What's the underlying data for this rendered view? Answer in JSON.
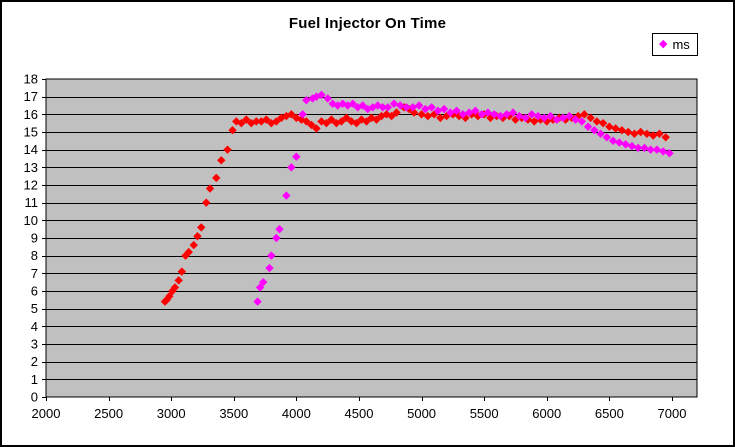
{
  "chart_data": {
    "type": "scatter",
    "title": "Fuel Injector On Time",
    "xlabel": "",
    "ylabel": "",
    "xlim": [
      2000,
      7200
    ],
    "ylim": [
      0,
      18
    ],
    "x_ticks": [
      2000,
      2500,
      3000,
      3500,
      4000,
      4500,
      5000,
      5500,
      6000,
      6500,
      7000
    ],
    "y_ticks": [
      0,
      1,
      2,
      3,
      4,
      5,
      6,
      7,
      8,
      9,
      10,
      11,
      12,
      13,
      14,
      15,
      16,
      17,
      18
    ],
    "grid": "horizontal",
    "colors": {
      "plot_background": "#C0C0C0",
      "gridline": "#000000",
      "axis": "#000000",
      "outer_border": "#000000",
      "text": "#000000"
    },
    "legend": {
      "position": "top-right",
      "entries": [
        {
          "label": "ms",
          "color": "#FF00FF",
          "marker": "diamond"
        }
      ]
    },
    "series": [
      {
        "name": "",
        "color": "#FF0000",
        "marker": "diamond",
        "points": [
          [
            2950,
            5.4
          ],
          [
            2965,
            5.5
          ],
          [
            2985,
            5.7
          ],
          [
            3010,
            6.0
          ],
          [
            3030,
            6.2
          ],
          [
            3060,
            6.6
          ],
          [
            3085,
            7.1
          ],
          [
            3115,
            8.0
          ],
          [
            3140,
            8.2
          ],
          [
            3180,
            8.6
          ],
          [
            3210,
            9.1
          ],
          [
            3240,
            9.6
          ],
          [
            3280,
            11.0
          ],
          [
            3310,
            11.8
          ],
          [
            3360,
            12.4
          ],
          [
            3400,
            13.4
          ],
          [
            3450,
            14.0
          ],
          [
            3490,
            15.1
          ],
          [
            3520,
            15.6
          ],
          [
            3560,
            15.5
          ],
          [
            3600,
            15.7
          ],
          [
            3640,
            15.5
          ],
          [
            3680,
            15.6
          ],
          [
            3720,
            15.6
          ],
          [
            3760,
            15.7
          ],
          [
            3800,
            15.5
          ],
          [
            3840,
            15.6
          ],
          [
            3880,
            15.8
          ],
          [
            3920,
            15.9
          ],
          [
            3960,
            16.0
          ],
          [
            4000,
            15.8
          ],
          [
            4040,
            15.7
          ],
          [
            4080,
            15.6
          ],
          [
            4120,
            15.4
          ],
          [
            4160,
            15.2
          ],
          [
            4200,
            15.6
          ],
          [
            4240,
            15.5
          ],
          [
            4280,
            15.7
          ],
          [
            4320,
            15.5
          ],
          [
            4360,
            15.6
          ],
          [
            4400,
            15.8
          ],
          [
            4440,
            15.6
          ],
          [
            4480,
            15.5
          ],
          [
            4520,
            15.7
          ],
          [
            4560,
            15.6
          ],
          [
            4600,
            15.8
          ],
          [
            4640,
            15.7
          ],
          [
            4680,
            15.9
          ],
          [
            4720,
            16.0
          ],
          [
            4760,
            15.9
          ],
          [
            4800,
            16.1
          ],
          [
            4860,
            16.4
          ],
          [
            4900,
            16.3
          ],
          [
            4940,
            16.1
          ],
          [
            5000,
            16.0
          ],
          [
            5050,
            15.9
          ],
          [
            5100,
            16.0
          ],
          [
            5150,
            15.8
          ],
          [
            5200,
            15.9
          ],
          [
            5250,
            16.0
          ],
          [
            5300,
            15.9
          ],
          [
            5350,
            15.8
          ],
          [
            5400,
            16.0
          ],
          [
            5450,
            15.9
          ],
          [
            5500,
            16.0
          ],
          [
            5550,
            15.8
          ],
          [
            5600,
            15.9
          ],
          [
            5650,
            15.8
          ],
          [
            5700,
            15.9
          ],
          [
            5750,
            15.7
          ],
          [
            5800,
            15.8
          ],
          [
            5850,
            15.7
          ],
          [
            5900,
            15.6
          ],
          [
            5950,
            15.7
          ],
          [
            6000,
            15.6
          ],
          [
            6050,
            15.7
          ],
          [
            6100,
            15.8
          ],
          [
            6150,
            15.7
          ],
          [
            6200,
            15.8
          ],
          [
            6250,
            15.9
          ],
          [
            6300,
            16.0
          ],
          [
            6350,
            15.8
          ],
          [
            6400,
            15.6
          ],
          [
            6450,
            15.5
          ],
          [
            6500,
            15.3
          ],
          [
            6550,
            15.2
          ],
          [
            6600,
            15.1
          ],
          [
            6650,
            15.0
          ],
          [
            6700,
            14.9
          ],
          [
            6750,
            15.0
          ],
          [
            6800,
            14.9
          ],
          [
            6850,
            14.8
          ],
          [
            6900,
            14.9
          ],
          [
            6950,
            14.7
          ]
        ]
      },
      {
        "name": "ms",
        "color": "#FF00FF",
        "marker": "diamond",
        "points": [
          [
            3690,
            5.4
          ],
          [
            3710,
            6.2
          ],
          [
            3735,
            6.5
          ],
          [
            3785,
            7.3
          ],
          [
            3800,
            8.0
          ],
          [
            3840,
            9.0
          ],
          [
            3865,
            9.5
          ],
          [
            3920,
            11.4
          ],
          [
            3960,
            13.0
          ],
          [
            4000,
            13.6
          ],
          [
            4050,
            16.0
          ],
          [
            4080,
            16.8
          ],
          [
            4130,
            16.9
          ],
          [
            4160,
            17.0
          ],
          [
            4200,
            17.1
          ],
          [
            4250,
            16.9
          ],
          [
            4290,
            16.6
          ],
          [
            4330,
            16.5
          ],
          [
            4370,
            16.6
          ],
          [
            4410,
            16.5
          ],
          [
            4450,
            16.6
          ],
          [
            4490,
            16.4
          ],
          [
            4530,
            16.5
          ],
          [
            4570,
            16.3
          ],
          [
            4610,
            16.4
          ],
          [
            4650,
            16.5
          ],
          [
            4690,
            16.4
          ],
          [
            4730,
            16.4
          ],
          [
            4780,
            16.6
          ],
          [
            4830,
            16.5
          ],
          [
            4880,
            16.4
          ],
          [
            4930,
            16.4
          ],
          [
            4980,
            16.5
          ],
          [
            5030,
            16.3
          ],
          [
            5080,
            16.4
          ],
          [
            5130,
            16.2
          ],
          [
            5180,
            16.3
          ],
          [
            5230,
            16.1
          ],
          [
            5280,
            16.2
          ],
          [
            5330,
            16.0
          ],
          [
            5380,
            16.1
          ],
          [
            5430,
            16.2
          ],
          [
            5480,
            16.0
          ],
          [
            5530,
            16.1
          ],
          [
            5580,
            16.0
          ],
          [
            5630,
            15.9
          ],
          [
            5680,
            16.0
          ],
          [
            5730,
            16.1
          ],
          [
            5780,
            15.9
          ],
          [
            5830,
            15.8
          ],
          [
            5880,
            16.0
          ],
          [
            5930,
            15.9
          ],
          [
            5980,
            15.8
          ],
          [
            6030,
            15.9
          ],
          [
            6080,
            15.7
          ],
          [
            6130,
            15.8
          ],
          [
            6180,
            15.9
          ],
          [
            6230,
            15.7
          ],
          [
            6280,
            15.6
          ],
          [
            6330,
            15.3
          ],
          [
            6380,
            15.1
          ],
          [
            6430,
            14.9
          ],
          [
            6480,
            14.7
          ],
          [
            6530,
            14.5
          ],
          [
            6580,
            14.4
          ],
          [
            6630,
            14.3
          ],
          [
            6680,
            14.2
          ],
          [
            6730,
            14.1
          ],
          [
            6780,
            14.1
          ],
          [
            6830,
            14.0
          ],
          [
            6880,
            14.0
          ],
          [
            6930,
            13.9
          ],
          [
            6980,
            13.8
          ]
        ]
      }
    ]
  }
}
